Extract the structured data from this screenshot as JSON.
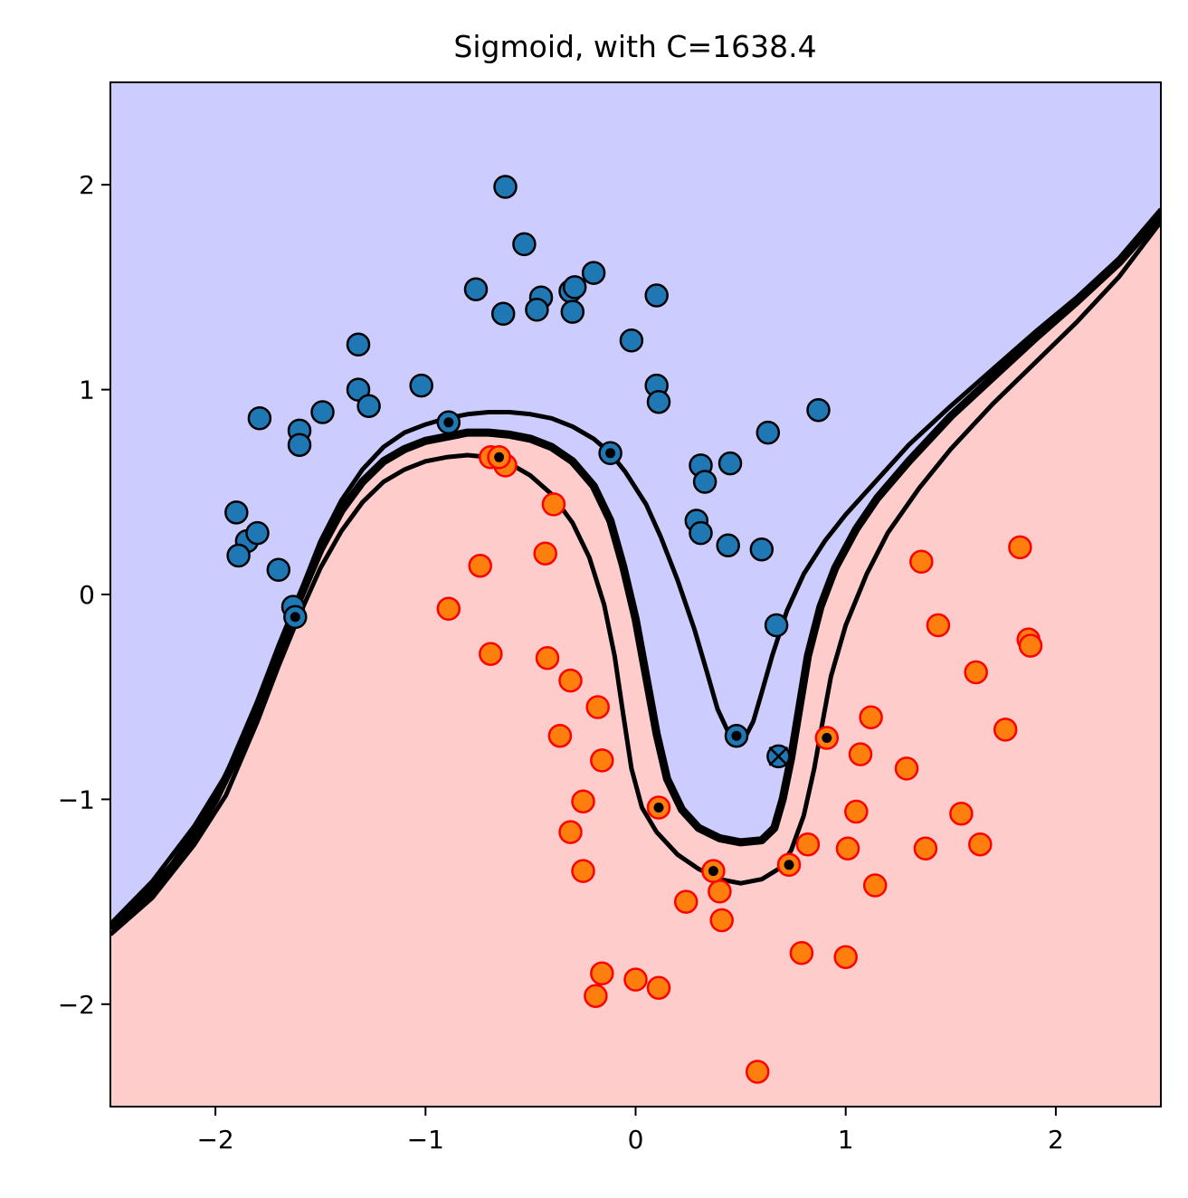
{
  "chart_data": {
    "type": "scatter",
    "title": "Sigmoid, with C=1638.4",
    "xlabel": "",
    "ylabel": "",
    "xlim": [
      -2.5,
      2.5
    ],
    "ylim": [
      -2.5,
      2.5
    ],
    "xticks": [
      -2,
      -1,
      0,
      1,
      2
    ],
    "yticks": [
      -2,
      -1,
      0,
      1,
      2
    ],
    "xtick_labels": [
      "−2",
      "−1",
      "0",
      "1",
      "2"
    ],
    "ytick_labels": [
      "−2",
      "−1",
      "0",
      "1",
      "2"
    ],
    "grid": false,
    "region_colors": {
      "upper": "#ccccff",
      "lower": "#ffcccc"
    },
    "series": [
      {
        "color": "#1f77b4",
        "edge": "#000000",
        "points": [
          [
            -0.62,
            1.99
          ],
          [
            -0.53,
            1.71
          ],
          [
            -0.76,
            1.49
          ],
          [
            -0.2,
            1.57
          ],
          [
            -0.31,
            1.48
          ],
          [
            -0.29,
            1.5
          ],
          [
            -0.45,
            1.45
          ],
          [
            -0.47,
            1.39
          ],
          [
            -0.63,
            1.37
          ],
          [
            -0.3,
            1.38
          ],
          [
            0.1,
            1.46
          ],
          [
            -0.02,
            1.24
          ],
          [
            -1.32,
            1.22
          ],
          [
            -1.32,
            1.0
          ],
          [
            -1.27,
            0.92
          ],
          [
            -1.02,
            1.02
          ],
          [
            -1.49,
            0.89
          ],
          [
            -1.79,
            0.86
          ],
          [
            -1.6,
            0.8
          ],
          [
            -1.6,
            0.73
          ],
          [
            0.1,
            1.02
          ],
          [
            0.11,
            0.94
          ],
          [
            0.87,
            0.9
          ],
          [
            0.63,
            0.79
          ],
          [
            0.45,
            0.64
          ],
          [
            0.31,
            0.63
          ],
          [
            0.33,
            0.55
          ],
          [
            0.29,
            0.36
          ],
          [
            0.31,
            0.3
          ],
          [
            0.44,
            0.24
          ],
          [
            0.6,
            0.22
          ],
          [
            -1.9,
            0.4
          ],
          [
            -1.85,
            0.26
          ],
          [
            -1.8,
            0.3
          ],
          [
            -1.89,
            0.19
          ],
          [
            -1.7,
            0.12
          ],
          [
            -1.63,
            -0.06
          ],
          [
            0.67,
            -0.15
          ]
        ]
      },
      {
        "color": "#ff7f0e",
        "edge": "#ff0000",
        "points": [
          [
            -0.69,
            0.67
          ],
          [
            -0.62,
            0.63
          ],
          [
            -0.39,
            0.44
          ],
          [
            -0.74,
            0.14
          ],
          [
            -0.43,
            0.2
          ],
          [
            -0.89,
            -0.07
          ],
          [
            -0.69,
            -0.29
          ],
          [
            -0.42,
            -0.31
          ],
          [
            -0.31,
            -0.42
          ],
          [
            -0.18,
            -0.55
          ],
          [
            -0.36,
            -0.69
          ],
          [
            -0.16,
            -0.81
          ],
          [
            -0.25,
            -1.01
          ],
          [
            -0.31,
            -1.16
          ],
          [
            -0.25,
            -1.35
          ],
          [
            0.24,
            -1.5
          ],
          [
            0.4,
            -1.45
          ],
          [
            0.41,
            -1.59
          ],
          [
            -0.16,
            -1.85
          ],
          [
            -0.19,
            -1.96
          ],
          [
            0.0,
            -1.88
          ],
          [
            0.11,
            -1.92
          ],
          [
            0.58,
            -2.33
          ],
          [
            0.82,
            -1.22
          ],
          [
            0.79,
            -1.75
          ],
          [
            1.0,
            -1.77
          ],
          [
            1.01,
            -1.24
          ],
          [
            1.05,
            -1.06
          ],
          [
            1.07,
            -0.78
          ],
          [
            1.12,
            -0.6
          ],
          [
            1.14,
            -1.42
          ],
          [
            1.29,
            -0.85
          ],
          [
            1.38,
            -1.24
          ],
          [
            1.36,
            0.16
          ],
          [
            1.44,
            -0.15
          ],
          [
            1.55,
            -1.07
          ],
          [
            1.62,
            -0.38
          ],
          [
            1.64,
            -1.22
          ],
          [
            1.76,
            -0.66
          ],
          [
            1.83,
            0.23
          ],
          [
            1.87,
            -0.22
          ],
          [
            1.88,
            -0.25
          ]
        ]
      }
    ],
    "support_vectors": [
      [
        -0.89,
        0.84
      ],
      [
        -0.12,
        0.69
      ],
      [
        -1.62,
        -0.11
      ],
      [
        0.48,
        -0.69
      ],
      [
        -0.65,
        0.67
      ],
      [
        0.11,
        -1.04
      ],
      [
        0.37,
        -1.35
      ],
      [
        0.73,
        -1.32
      ],
      [
        0.91,
        -0.7
      ]
    ],
    "decision_boundary": [
      [
        -2.5,
        -1.63
      ],
      [
        -2.4,
        -1.54
      ],
      [
        -2.3,
        -1.44
      ],
      [
        -2.2,
        -1.32
      ],
      [
        -2.1,
        -1.17
      ],
      [
        -2.0,
        -1.0
      ],
      [
        -1.9,
        -0.79
      ],
      [
        -1.8,
        -0.55
      ],
      [
        -1.7,
        -0.28
      ],
      [
        -1.6,
        -0.02
      ],
      [
        -1.5,
        0.22
      ],
      [
        -1.4,
        0.41
      ],
      [
        -1.3,
        0.55
      ],
      [
        -1.2,
        0.65
      ],
      [
        -1.1,
        0.71
      ],
      [
        -1.0,
        0.75
      ],
      [
        -0.9,
        0.77
      ],
      [
        -0.8,
        0.79
      ],
      [
        -0.7,
        0.79
      ],
      [
        -0.6,
        0.78
      ],
      [
        -0.5,
        0.76
      ],
      [
        -0.4,
        0.72
      ],
      [
        -0.3,
        0.65
      ],
      [
        -0.2,
        0.53
      ],
      [
        -0.12,
        0.36
      ],
      [
        -0.06,
        0.14
      ],
      [
        0.0,
        -0.12
      ],
      [
        0.05,
        -0.4
      ],
      [
        0.1,
        -0.68
      ],
      [
        0.15,
        -0.9
      ],
      [
        0.22,
        -1.05
      ],
      [
        0.3,
        -1.14
      ],
      [
        0.4,
        -1.19
      ],
      [
        0.5,
        -1.21
      ],
      [
        0.6,
        -1.2
      ],
      [
        0.66,
        -1.14
      ],
      [
        0.7,
        -1.0
      ],
      [
        0.74,
        -0.8
      ],
      [
        0.78,
        -0.55
      ],
      [
        0.82,
        -0.3
      ],
      [
        0.88,
        -0.06
      ],
      [
        0.95,
        0.13
      ],
      [
        1.05,
        0.32
      ],
      [
        1.15,
        0.47
      ],
      [
        1.3,
        0.65
      ],
      [
        1.5,
        0.87
      ],
      [
        1.7,
        1.06
      ],
      [
        1.9,
        1.25
      ],
      [
        2.1,
        1.43
      ],
      [
        2.3,
        1.62
      ],
      [
        2.5,
        1.85
      ]
    ],
    "upper_margin": [
      [
        -2.5,
        -1.61
      ],
      [
        -2.3,
        -1.4
      ],
      [
        -2.1,
        -1.13
      ],
      [
        -1.95,
        -0.88
      ],
      [
        -1.8,
        -0.52
      ],
      [
        -1.7,
        -0.25
      ],
      [
        -1.6,
        0.0
      ],
      [
        -1.5,
        0.26
      ],
      [
        -1.4,
        0.46
      ],
      [
        -1.3,
        0.61
      ],
      [
        -1.2,
        0.72
      ],
      [
        -1.1,
        0.79
      ],
      [
        -1.0,
        0.83
      ],
      [
        -0.9,
        0.86
      ],
      [
        -0.8,
        0.88
      ],
      [
        -0.7,
        0.89
      ],
      [
        -0.6,
        0.89
      ],
      [
        -0.5,
        0.88
      ],
      [
        -0.4,
        0.86
      ],
      [
        -0.3,
        0.82
      ],
      [
        -0.2,
        0.76
      ],
      [
        -0.12,
        0.69
      ],
      [
        -0.05,
        0.6
      ],
      [
        0.05,
        0.44
      ],
      [
        0.12,
        0.28
      ],
      [
        0.2,
        0.07
      ],
      [
        0.28,
        -0.17
      ],
      [
        0.34,
        -0.38
      ],
      [
        0.39,
        -0.56
      ],
      [
        0.44,
        -0.67
      ],
      [
        0.48,
        -0.71
      ],
      [
        0.52,
        -0.7
      ],
      [
        0.56,
        -0.62
      ],
      [
        0.6,
        -0.48
      ],
      [
        0.65,
        -0.3
      ],
      [
        0.72,
        -0.08
      ],
      [
        0.8,
        0.1
      ],
      [
        0.9,
        0.26
      ],
      [
        1.0,
        0.39
      ],
      [
        1.15,
        0.56
      ],
      [
        1.3,
        0.73
      ],
      [
        1.5,
        0.92
      ],
      [
        1.7,
        1.1
      ],
      [
        1.9,
        1.28
      ],
      [
        2.1,
        1.45
      ],
      [
        2.3,
        1.64
      ],
      [
        2.5,
        1.88
      ]
    ],
    "lower_margin": [
      [
        -2.5,
        -1.66
      ],
      [
        -2.3,
        -1.48
      ],
      [
        -2.1,
        -1.22
      ],
      [
        -1.95,
        -0.98
      ],
      [
        -1.8,
        -0.62
      ],
      [
        -1.7,
        -0.35
      ],
      [
        -1.6,
        -0.1
      ],
      [
        -1.5,
        0.13
      ],
      [
        -1.4,
        0.31
      ],
      [
        -1.3,
        0.45
      ],
      [
        -1.2,
        0.55
      ],
      [
        -1.1,
        0.61
      ],
      [
        -1.0,
        0.65
      ],
      [
        -0.9,
        0.67
      ],
      [
        -0.8,
        0.68
      ],
      [
        -0.7,
        0.67
      ],
      [
        -0.6,
        0.64
      ],
      [
        -0.5,
        0.58
      ],
      [
        -0.4,
        0.49
      ],
      [
        -0.3,
        0.35
      ],
      [
        -0.22,
        0.18
      ],
      [
        -0.15,
        -0.05
      ],
      [
        -0.1,
        -0.3
      ],
      [
        -0.06,
        -0.58
      ],
      [
        -0.02,
        -0.85
      ],
      [
        0.03,
        -1.04
      ],
      [
        0.1,
        -1.16
      ],
      [
        0.2,
        -1.27
      ],
      [
        0.3,
        -1.34
      ],
      [
        0.4,
        -1.39
      ],
      [
        0.5,
        -1.41
      ],
      [
        0.6,
        -1.39
      ],
      [
        0.68,
        -1.34
      ],
      [
        0.74,
        -1.25
      ],
      [
        0.8,
        -1.08
      ],
      [
        0.85,
        -0.85
      ],
      [
        0.89,
        -0.62
      ],
      [
        0.93,
        -0.4
      ],
      [
        1.0,
        -0.15
      ],
      [
        1.1,
        0.1
      ],
      [
        1.2,
        0.3
      ],
      [
        1.35,
        0.52
      ],
      [
        1.5,
        0.71
      ],
      [
        1.7,
        0.93
      ],
      [
        1.9,
        1.13
      ],
      [
        2.1,
        1.33
      ],
      [
        2.3,
        1.55
      ],
      [
        2.5,
        1.82
      ]
    ],
    "misclassified_marker": [
      0.68,
      -0.79
    ]
  }
}
